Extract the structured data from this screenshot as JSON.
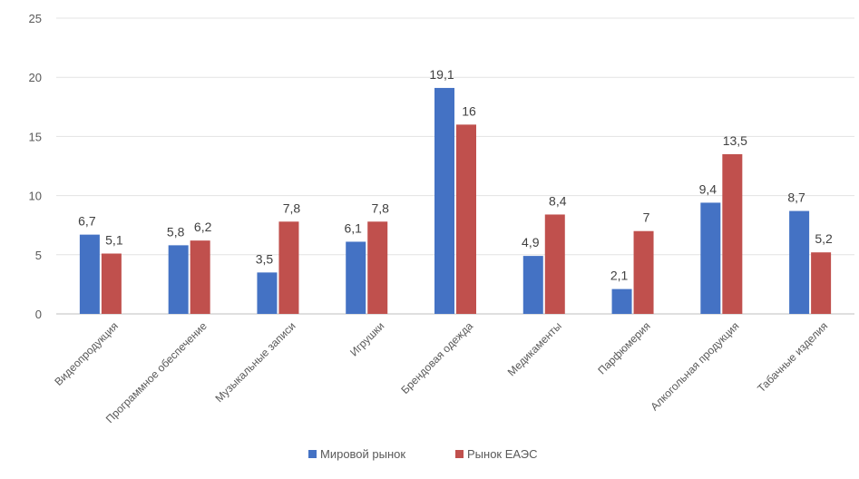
{
  "chart_data": {
    "type": "bar",
    "title": "",
    "xlabel": "",
    "ylabel": "",
    "ylim": [
      0,
      25
    ],
    "yticks": [
      0,
      5,
      10,
      15,
      20,
      25
    ],
    "grid": true,
    "legend_position": "bottom",
    "categories": [
      "Видеопродукция",
      "Программное обеспечение",
      "Музыкальные записи",
      "Игрушки",
      "Брендовая одежда",
      "Медикаменты",
      "Парфюмерия",
      "Алкогольная продукция",
      "Табачные изделия"
    ],
    "series": [
      {
        "name": "Мировой рынок",
        "color": "#4472C4",
        "values": [
          6.7,
          5.8,
          3.5,
          6.1,
          19.1,
          4.9,
          2.1,
          9.4,
          8.7
        ],
        "labels": [
          "6,7",
          "5,8",
          "3,5",
          "6,1",
          "19,1",
          "4,9",
          "2,1",
          "9,4",
          "8,7"
        ]
      },
      {
        "name": "Рынок ЕАЭС",
        "color": "#C0504D",
        "values": [
          5.1,
          6.2,
          7.8,
          7.8,
          16,
          8.4,
          7,
          13.5,
          5.2
        ],
        "labels": [
          "5,1",
          "6,2",
          "7,8",
          "7,8",
          "16",
          "8,4",
          "7",
          "13,5",
          "5,2"
        ]
      }
    ]
  }
}
